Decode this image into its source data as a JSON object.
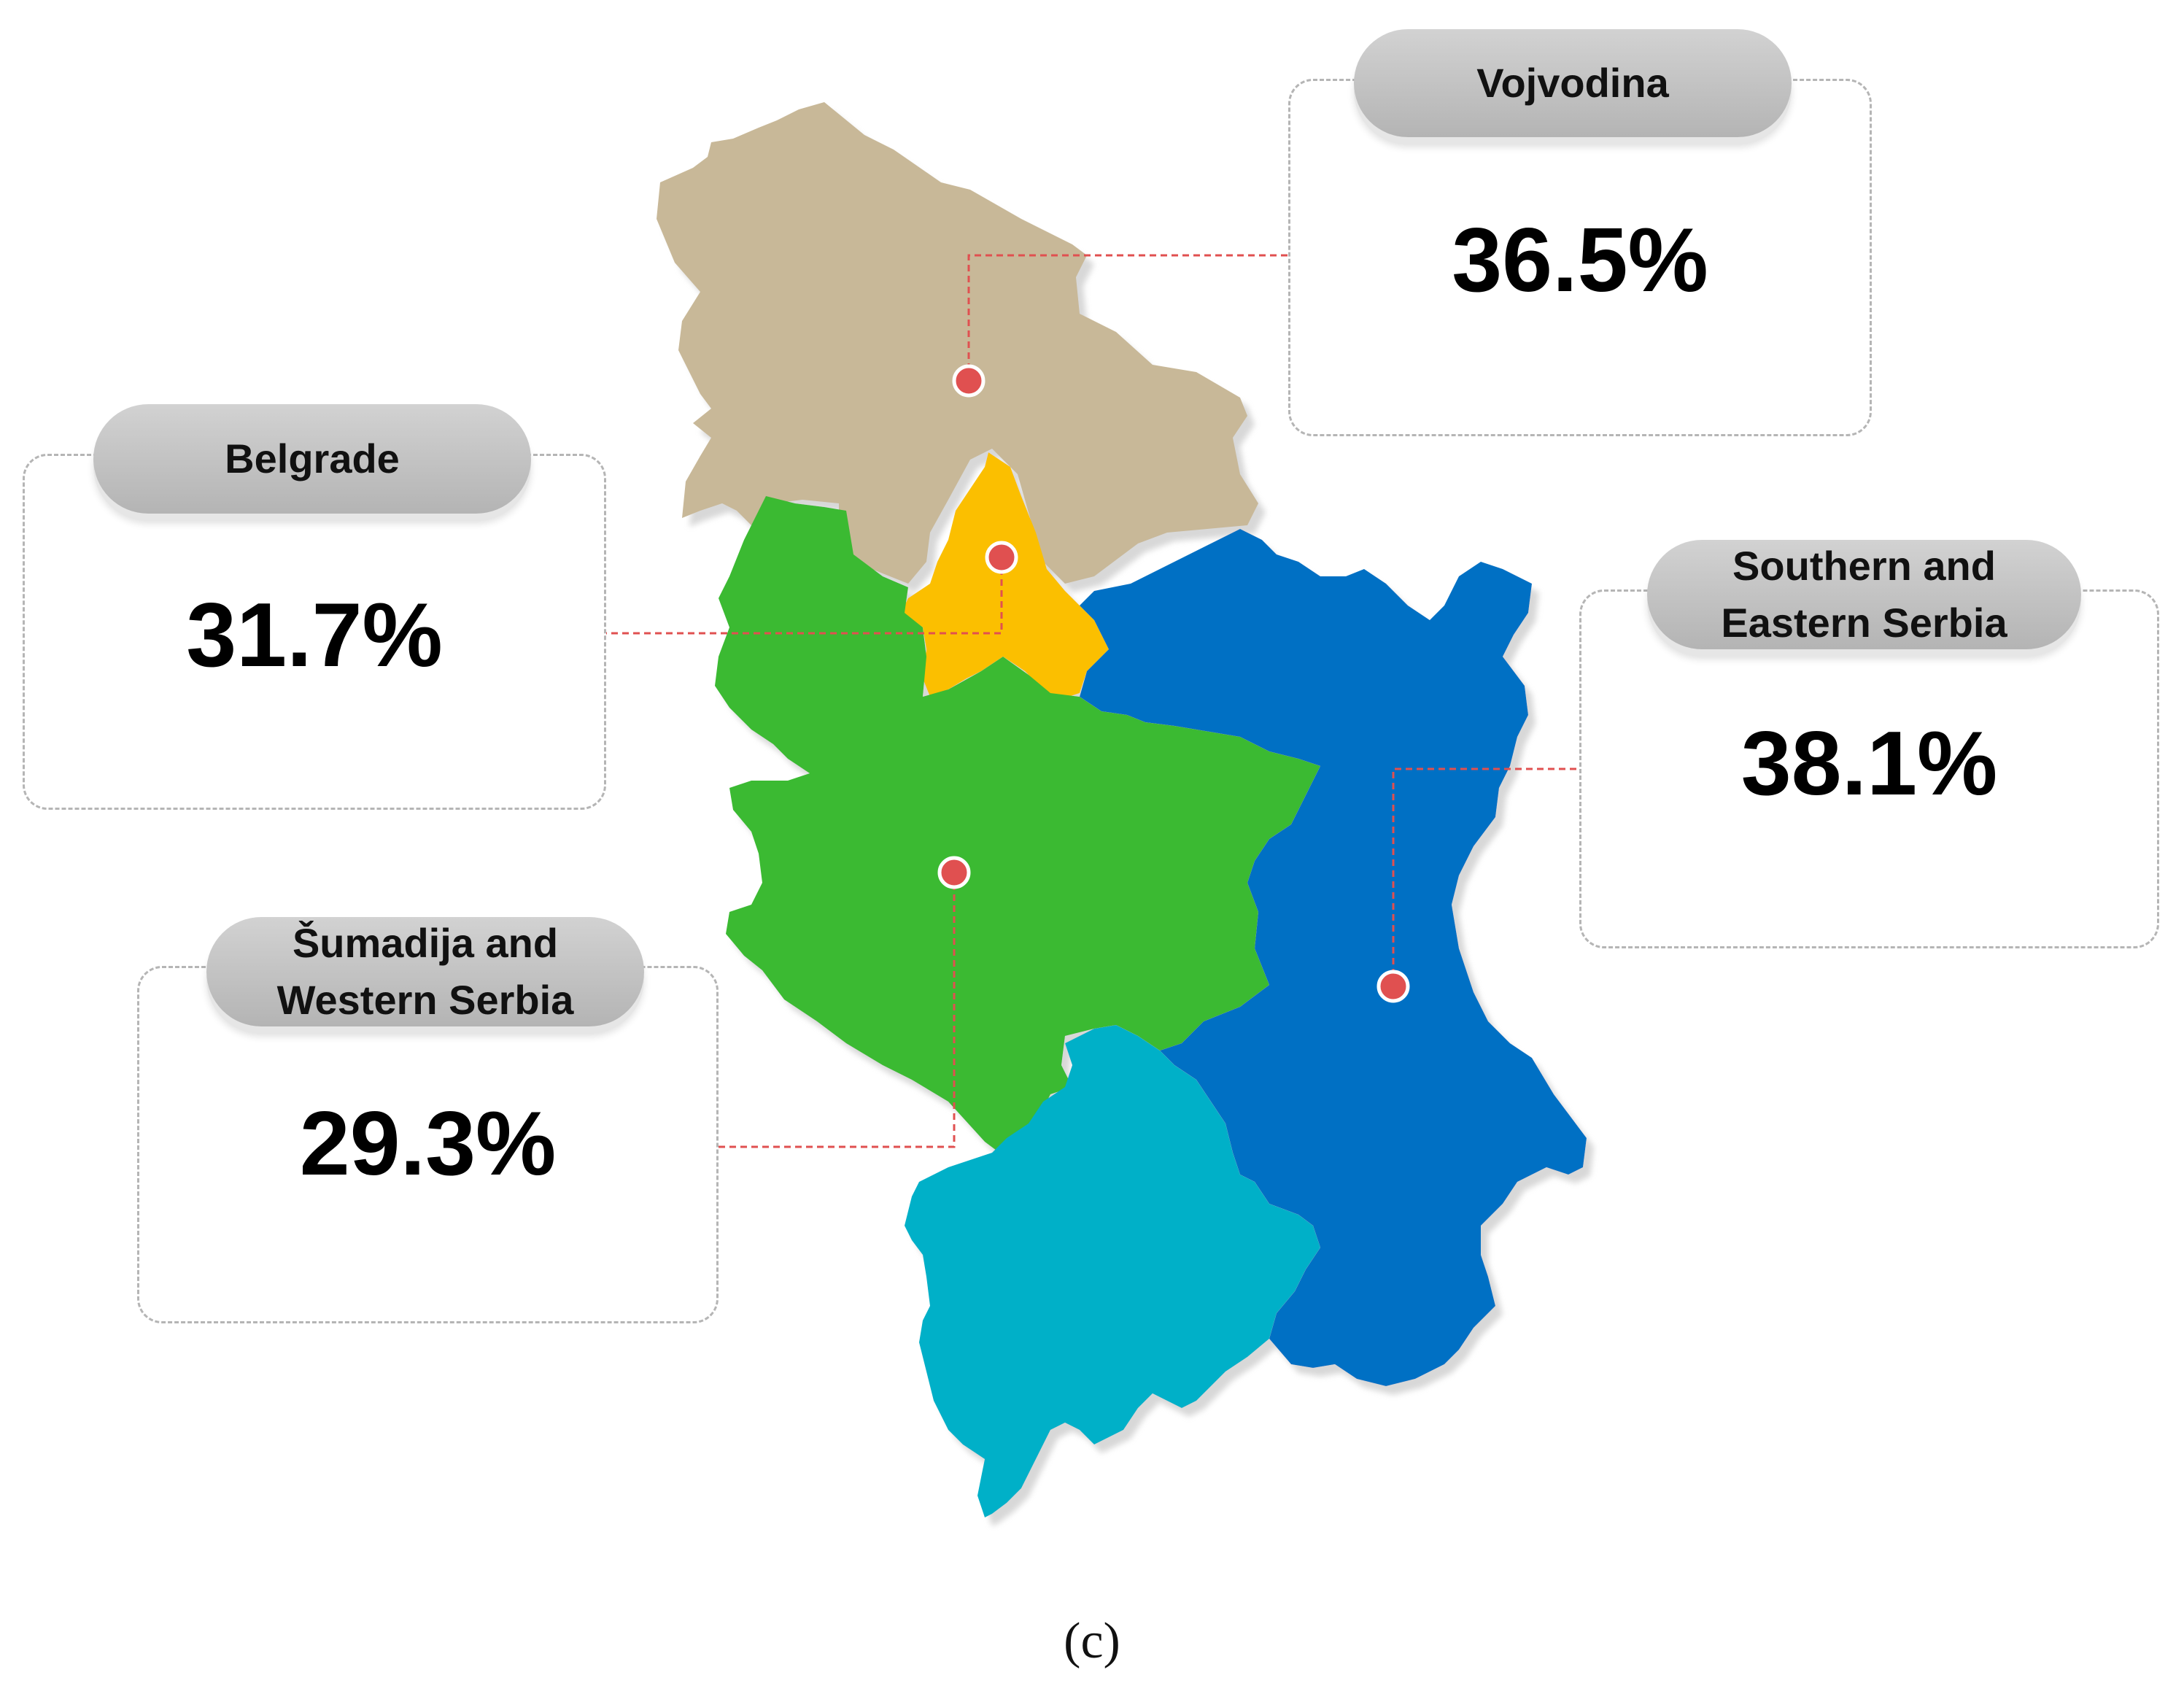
{
  "regions": {
    "vojvodina": {
      "name": "Vojvodina",
      "value": "36.5%",
      "color": "#c8b898"
    },
    "belgrade": {
      "name": "Belgrade",
      "value": "31.7%",
      "color": "#fbbf06"
    },
    "sumadija": {
      "name": "Šumadija and\nWestern Serbia",
      "value": "29.3%",
      "color": "#3bba33"
    },
    "southern": {
      "name": "Southern and\nEastern Serbia",
      "value": "38.1%",
      "color": "#0070c4"
    },
    "kosovo": {
      "color": "#00b0c8"
    }
  },
  "marker_color": "#e05050",
  "leader_color": "#e05050",
  "caption": "(c)"
}
